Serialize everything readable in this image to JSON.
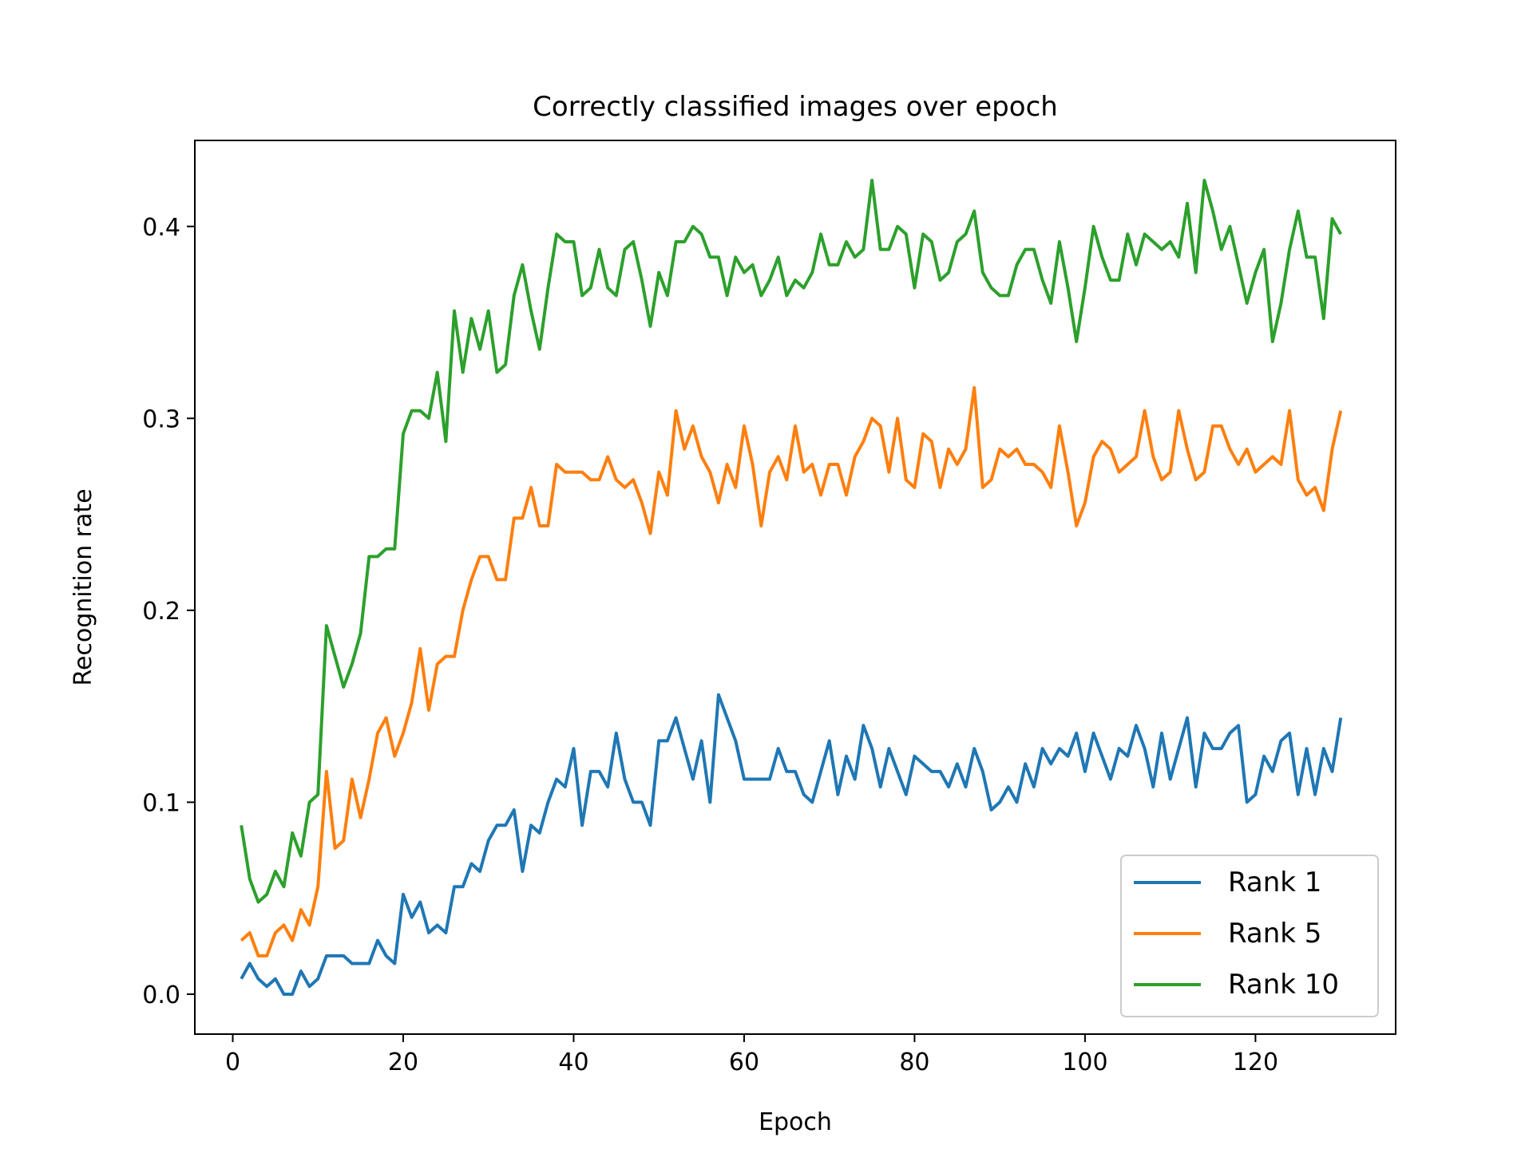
{
  "chart_data": {
    "type": "line",
    "title": "Correctly classified images over epoch",
    "xlabel": "Epoch",
    "ylabel": "Recognition rate",
    "xlim": [
      -4.45,
      136.45
    ],
    "ylim": [
      -0.0208,
      0.4448
    ],
    "xticks": [
      0,
      20,
      40,
      60,
      80,
      100,
      120
    ],
    "yticks": [
      0.0,
      0.1,
      0.2,
      0.3,
      0.4
    ],
    "xtick_labels": [
      "0",
      "20",
      "40",
      "60",
      "80",
      "100",
      "120"
    ],
    "ytick_labels": [
      "0.0",
      "0.1",
      "0.2",
      "0.3",
      "0.4"
    ],
    "grid": false,
    "legend_position": "lower-right",
    "x_start": 1,
    "x_step": 1,
    "series": [
      {
        "name": "Rank 1",
        "color": "#1f77b4",
        "values": [
          0.008,
          0.016,
          0.008,
          0.004,
          0.008,
          0.0,
          0.0,
          0.012,
          0.004,
          0.008,
          0.02,
          0.02,
          0.02,
          0.016,
          0.016,
          0.016,
          0.028,
          0.02,
          0.016,
          0.052,
          0.04,
          0.048,
          0.032,
          0.036,
          0.032,
          0.056,
          0.056,
          0.068,
          0.064,
          0.08,
          0.088,
          0.088,
          0.096,
          0.064,
          0.088,
          0.084,
          0.1,
          0.112,
          0.108,
          0.128,
          0.088,
          0.116,
          0.116,
          0.108,
          0.136,
          0.112,
          0.1,
          0.1,
          0.088,
          0.132,
          0.132,
          0.144,
          0.128,
          0.112,
          0.132,
          0.1,
          0.156,
          0.144,
          0.132,
          0.112,
          0.112,
          0.112,
          0.112,
          0.128,
          0.116,
          0.116,
          0.104,
          0.1,
          0.116,
          0.132,
          0.104,
          0.124,
          0.112,
          0.14,
          0.128,
          0.108,
          0.128,
          0.116,
          0.104,
          0.124,
          0.12,
          0.116,
          0.116,
          0.108,
          0.12,
          0.108,
          0.128,
          0.116,
          0.096,
          0.1,
          0.108,
          0.1,
          0.12,
          0.108,
          0.128,
          0.12,
          0.128,
          0.124,
          0.136,
          0.116,
          0.136,
          0.124,
          0.112,
          0.128,
          0.124,
          0.14,
          0.128,
          0.108,
          0.136,
          0.112,
          0.128,
          0.144,
          0.108,
          0.136,
          0.128,
          0.128,
          0.136,
          0.14,
          0.1,
          0.104,
          0.124,
          0.116,
          0.132,
          0.136,
          0.104,
          0.128,
          0.104,
          0.128,
          0.116,
          0.144
        ]
      },
      {
        "name": "Rank 5",
        "color": "#ff7f0e",
        "values": [
          0.028,
          0.032,
          0.02,
          0.02,
          0.032,
          0.036,
          0.028,
          0.044,
          0.036,
          0.056,
          0.116,
          0.076,
          0.08,
          0.112,
          0.092,
          0.112,
          0.136,
          0.144,
          0.124,
          0.136,
          0.152,
          0.18,
          0.148,
          0.172,
          0.176,
          0.176,
          0.2,
          0.216,
          0.228,
          0.228,
          0.216,
          0.216,
          0.248,
          0.248,
          0.264,
          0.244,
          0.244,
          0.276,
          0.272,
          0.272,
          0.272,
          0.268,
          0.268,
          0.28,
          0.268,
          0.264,
          0.268,
          0.256,
          0.24,
          0.272,
          0.26,
          0.304,
          0.284,
          0.296,
          0.28,
          0.272,
          0.256,
          0.276,
          0.264,
          0.296,
          0.276,
          0.244,
          0.272,
          0.28,
          0.268,
          0.296,
          0.272,
          0.276,
          0.26,
          0.276,
          0.276,
          0.26,
          0.28,
          0.288,
          0.3,
          0.296,
          0.272,
          0.3,
          0.268,
          0.264,
          0.292,
          0.288,
          0.264,
          0.284,
          0.276,
          0.284,
          0.316,
          0.264,
          0.268,
          0.284,
          0.28,
          0.284,
          0.276,
          0.276,
          0.272,
          0.264,
          0.296,
          0.272,
          0.244,
          0.256,
          0.28,
          0.288,
          0.284,
          0.272,
          0.276,
          0.28,
          0.304,
          0.28,
          0.268,
          0.272,
          0.304,
          0.284,
          0.268,
          0.272,
          0.296,
          0.296,
          0.284,
          0.276,
          0.284,
          0.272,
          0.276,
          0.28,
          0.276,
          0.304,
          0.268,
          0.26,
          0.264,
          0.252,
          0.284,
          0.304
        ]
      },
      {
        "name": "Rank 10",
        "color": "#2ca02c",
        "values": [
          0.088,
          0.06,
          0.048,
          0.052,
          0.064,
          0.056,
          0.084,
          0.072,
          0.1,
          0.104,
          0.192,
          0.176,
          0.16,
          0.172,
          0.188,
          0.228,
          0.228,
          0.232,
          0.232,
          0.292,
          0.304,
          0.304,
          0.3,
          0.324,
          0.288,
          0.356,
          0.324,
          0.352,
          0.336,
          0.356,
          0.324,
          0.328,
          0.364,
          0.38,
          0.356,
          0.336,
          0.368,
          0.396,
          0.392,
          0.392,
          0.364,
          0.368,
          0.388,
          0.368,
          0.364,
          0.388,
          0.392,
          0.372,
          0.348,
          0.376,
          0.364,
          0.392,
          0.392,
          0.4,
          0.396,
          0.384,
          0.384,
          0.364,
          0.384,
          0.376,
          0.38,
          0.364,
          0.372,
          0.384,
          0.364,
          0.372,
          0.368,
          0.376,
          0.396,
          0.38,
          0.38,
          0.392,
          0.384,
          0.388,
          0.424,
          0.388,
          0.388,
          0.4,
          0.396,
          0.368,
          0.396,
          0.392,
          0.372,
          0.376,
          0.392,
          0.396,
          0.408,
          0.376,
          0.368,
          0.364,
          0.364,
          0.38,
          0.388,
          0.388,
          0.372,
          0.36,
          0.392,
          0.368,
          0.34,
          0.368,
          0.4,
          0.384,
          0.372,
          0.372,
          0.396,
          0.38,
          0.396,
          0.392,
          0.388,
          0.392,
          0.384,
          0.412,
          0.376,
          0.424,
          0.408,
          0.388,
          0.4,
          0.38,
          0.36,
          0.376,
          0.388,
          0.34,
          0.36,
          0.388,
          0.408,
          0.384,
          0.384,
          0.352,
          0.404,
          0.396
        ]
      }
    ]
  }
}
